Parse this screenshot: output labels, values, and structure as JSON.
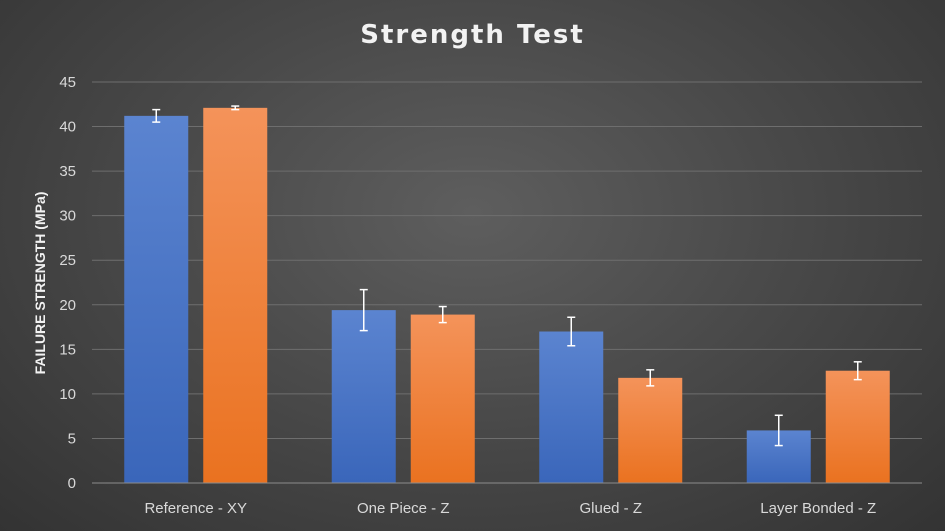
{
  "chart_data": {
    "type": "bar",
    "title": "Strength Test",
    "xlabel": "",
    "ylabel": "FAILURE STRENGTH (MPa)",
    "ylim": [
      0,
      45
    ],
    "yticks": [
      0,
      5,
      10,
      15,
      20,
      25,
      30,
      35,
      40,
      45
    ],
    "grid": true,
    "legend": "none",
    "categories": [
      "Reference - XY",
      "One Piece - Z",
      "Glued - Z",
      "Layer Bonded - Z"
    ],
    "series": [
      {
        "color": "#4472c4",
        "values": [
          41.2,
          19.4,
          17.0,
          5.9
        ],
        "error": [
          0.7,
          2.3,
          1.6,
          1.7
        ]
      },
      {
        "color": "#ed7d31",
        "values": [
          42.1,
          18.9,
          11.8,
          12.6
        ],
        "error": [
          0.2,
          0.9,
          0.9,
          1.0
        ]
      }
    ]
  }
}
